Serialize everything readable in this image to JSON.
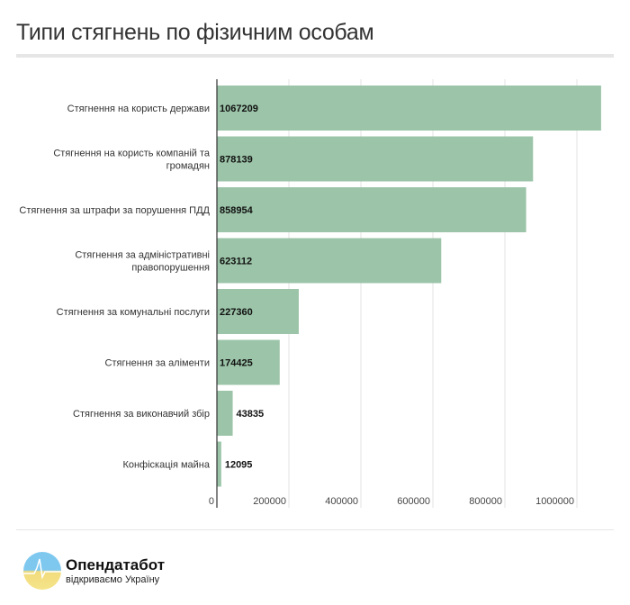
{
  "title": "Типи стягнень по фізичним особам",
  "footer": {
    "brand": "Опендатабот",
    "tagline": "відкриваємо Україну"
  },
  "chart_data": {
    "type": "bar",
    "orientation": "horizontal",
    "categories": [
      "Стягнення на користь держави",
      "Стягнення на користь компаній та громадян",
      "Стягнення за штрафи за порушення ПДД",
      "Стягнення за адміністративні правопорушення",
      "Стягнення за комунальні послуги",
      "Стягнення за аліменти",
      "Стягнення за виконавчий збір",
      "Конфіскація майна"
    ],
    "values": [
      1067209,
      878139,
      858954,
      623112,
      227360,
      174425,
      43835,
      12095
    ],
    "xlim": [
      0,
      1100000
    ],
    "xticks": [
      "0",
      "200000",
      "400000",
      "600000",
      "800000",
      "1000000"
    ],
    "grid": true,
    "bar_color": "#9bc4a8"
  }
}
